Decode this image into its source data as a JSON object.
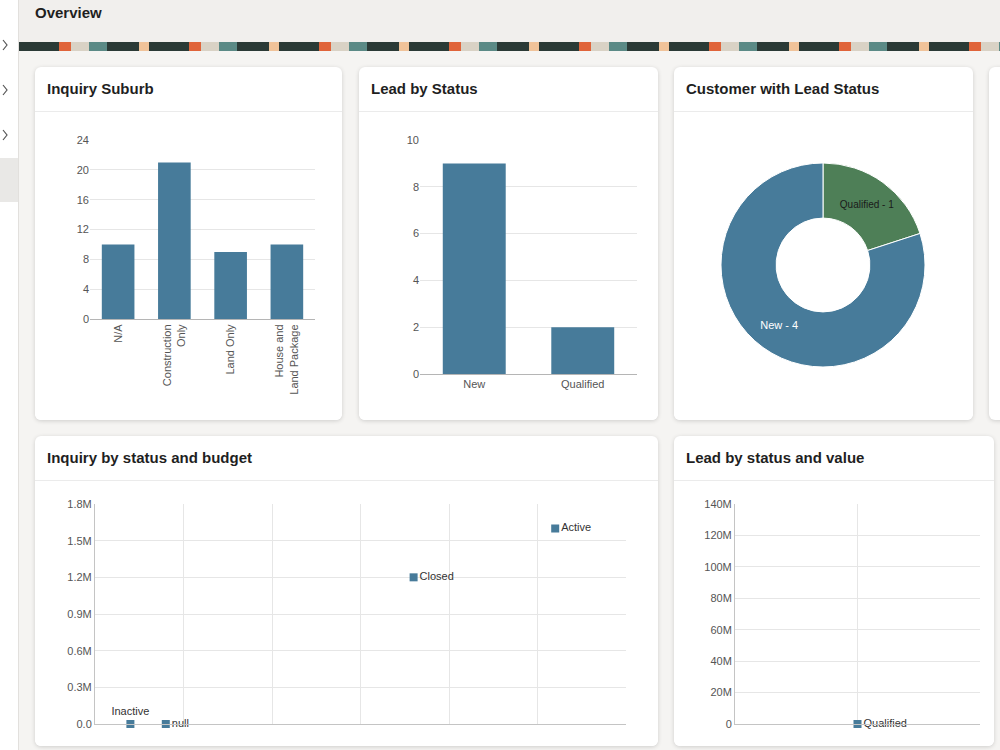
{
  "page": {
    "title": "Overview"
  },
  "chart_data": [
    {
      "type": "bar",
      "title": "Inquiry Suburb",
      "categories": [
        "N/A",
        "Construction Only",
        "Land Only",
        "House and Land Package"
      ],
      "values": [
        10,
        21,
        9,
        10
      ],
      "color": "#477b9a",
      "ylim": [
        0,
        24
      ],
      "yticks": [
        0,
        4,
        8,
        12,
        16,
        20,
        24
      ],
      "grid": true
    },
    {
      "type": "bar",
      "title": "Lead by Status",
      "categories": [
        "New",
        "Qualified"
      ],
      "values": [
        9,
        2
      ],
      "color": "#477b9a",
      "ylim": [
        0,
        10
      ],
      "yticks": [
        0,
        2,
        4,
        6,
        8,
        10
      ],
      "grid": true
    },
    {
      "type": "pie",
      "title": "Customer with Lead Status",
      "categories": [
        "Qualified",
        "New"
      ],
      "values": [
        1,
        4
      ],
      "value_labels": [
        "Qualified - 1",
        "New - 4"
      ],
      "colors": [
        "#4e7f57",
        "#477b9a"
      ],
      "data_labels": true
    },
    {
      "type": "scatter",
      "title": "Inquiry by status and budget",
      "point_labels": [
        "Active",
        "Closed",
        "Inactive",
        "null"
      ],
      "x": [
        5.2,
        3.6,
        0.4,
        0.8
      ],
      "values": [
        1600000,
        1200000,
        0,
        0
      ],
      "color": "#477b9a",
      "marker": "square",
      "xlim": [
        0,
        6
      ],
      "xticks": [
        0,
        1,
        2,
        3,
        4,
        5,
        6
      ],
      "ylim": [
        0,
        1800000
      ],
      "yticks": [
        {
          "value": 0,
          "label": "0.0"
        },
        {
          "value": 300000,
          "label": "0.3M"
        },
        {
          "value": 600000,
          "label": "0.6M"
        },
        {
          "value": 900000,
          "label": "0.9M"
        },
        {
          "value": 1200000,
          "label": "1.2M"
        },
        {
          "value": 1500000,
          "label": "1.5M"
        },
        {
          "value": 1800000,
          "label": "1.8M"
        }
      ],
      "grid": true,
      "tick_labels": "y"
    },
    {
      "type": "scatter",
      "title": "Lead by status and value",
      "point_labels": [
        "Qualified"
      ],
      "x": [
        1
      ],
      "values": [
        0
      ],
      "color": "#477b9a",
      "marker": "square",
      "xlim": [
        0,
        2
      ],
      "xticks": [
        0,
        1,
        2
      ],
      "ylim": [
        0,
        140000000
      ],
      "yticks": [
        0,
        {
          "value": 20000000,
          "label": "20M"
        },
        {
          "value": 40000000,
          "label": "40M"
        },
        {
          "value": 60000000,
          "label": "60M"
        },
        {
          "value": 80000000,
          "label": "80M"
        },
        {
          "value": 100000000,
          "label": "100M"
        },
        {
          "value": 120000000,
          "label": "120M"
        },
        {
          "value": 140000000,
          "label": "140M"
        }
      ],
      "grid": true,
      "tick_labels": "y"
    }
  ]
}
